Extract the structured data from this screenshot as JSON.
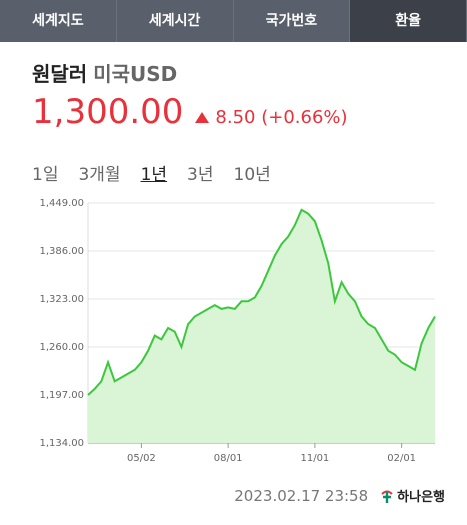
{
  "tabs": {
    "items": [
      "세계지도",
      "세계시간",
      "국가번호",
      "환율"
    ],
    "active": 3
  },
  "header": {
    "title": "원달러",
    "subtitle": "미국USD"
  },
  "quote": {
    "price": "1,300.00",
    "change": "8.50",
    "change_pct": "(+0.66%)"
  },
  "periods": {
    "items": [
      "1일",
      "3개월",
      "1년",
      "3년",
      "10년"
    ],
    "active": 2
  },
  "chart_data": {
    "type": "area",
    "categories": [
      null,
      null,
      null,
      null,
      null,
      null,
      null,
      null,
      "05/02",
      null,
      null,
      null,
      null,
      null,
      null,
      null,
      null,
      null,
      null,
      null,
      null,
      "08/01",
      null,
      null,
      null,
      null,
      null,
      null,
      null,
      null,
      null,
      null,
      null,
      null,
      "11/01",
      null,
      null,
      null,
      null,
      null,
      null,
      null,
      null,
      null,
      null,
      null,
      null,
      "02/01",
      null,
      null,
      null,
      null,
      null
    ],
    "values": [
      1197,
      1205,
      1215,
      1240,
      1215,
      1220,
      1225,
      1230,
      1240,
      1255,
      1275,
      1270,
      1285,
      1280,
      1260,
      1290,
      1300,
      1305,
      1310,
      1315,
      1310,
      1312,
      1310,
      1320,
      1320,
      1325,
      1340,
      1360,
      1380,
      1395,
      1405,
      1420,
      1440,
      1435,
      1425,
      1400,
      1370,
      1320,
      1345,
      1330,
      1320,
      1300,
      1290,
      1285,
      1270,
      1255,
      1250,
      1240,
      1235,
      1230,
      1265,
      1285,
      1300
    ],
    "color": "#3cc83c",
    "fill": "#d9f5d6",
    "ylim": [
      1134,
      1449
    ],
    "yticks": [
      {
        "value": 1134,
        "label": "1,134.00"
      },
      {
        "value": 1197,
        "label": "1,197.00"
      },
      {
        "value": 1260,
        "label": "1,260.00"
      },
      {
        "value": 1323,
        "label": "1,323.00"
      },
      {
        "value": 1386,
        "label": "1,386.00"
      },
      {
        "value": 1449,
        "label": "1,449.00"
      }
    ],
    "grid": true
  },
  "footer": {
    "timestamp": "2023.02.17 23:58",
    "bank": "하나은행"
  }
}
